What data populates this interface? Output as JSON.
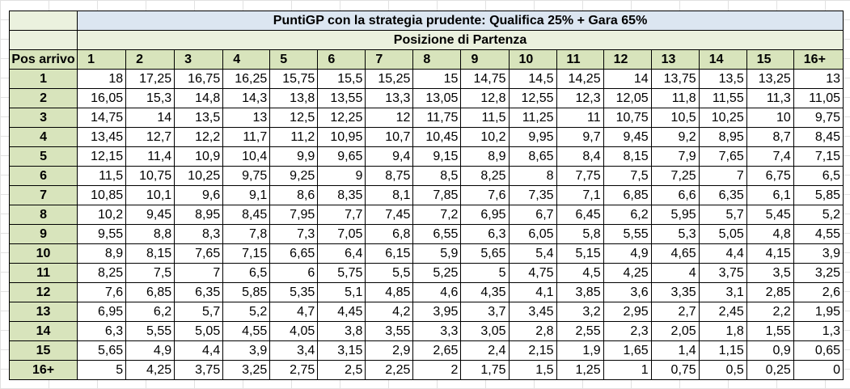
{
  "title": "PuntiGP con la strategia prudente: Qualifica 25% + Gara 65%",
  "subtitle": "Posizione di Partenza",
  "row_header_label": "Pos arrivo",
  "columns": [
    "1",
    "2",
    "3",
    "4",
    "5",
    "6",
    "7",
    "8",
    "9",
    "10",
    "11",
    "12",
    "13",
    "14",
    "15",
    "16+"
  ],
  "rows": [
    {
      "label": "1",
      "values": [
        "18",
        "17,25",
        "16,75",
        "16,25",
        "15,75",
        "15,5",
        "15,25",
        "15",
        "14,75",
        "14,5",
        "14,25",
        "14",
        "13,75",
        "13,5",
        "13,25",
        "13"
      ]
    },
    {
      "label": "2",
      "values": [
        "16,05",
        "15,3",
        "14,8",
        "14,3",
        "13,8",
        "13,55",
        "13,3",
        "13,05",
        "12,8",
        "12,55",
        "12,3",
        "12,05",
        "11,8",
        "11,55",
        "11,3",
        "11,05"
      ]
    },
    {
      "label": "3",
      "values": [
        "14,75",
        "14",
        "13,5",
        "13",
        "12,5",
        "12,25",
        "12",
        "11,75",
        "11,5",
        "11,25",
        "11",
        "10,75",
        "10,5",
        "10,25",
        "10",
        "9,75"
      ]
    },
    {
      "label": "4",
      "values": [
        "13,45",
        "12,7",
        "12,2",
        "11,7",
        "11,2",
        "10,95",
        "10,7",
        "10,45",
        "10,2",
        "9,95",
        "9,7",
        "9,45",
        "9,2",
        "8,95",
        "8,7",
        "8,45"
      ]
    },
    {
      "label": "5",
      "values": [
        "12,15",
        "11,4",
        "10,9",
        "10,4",
        "9,9",
        "9,65",
        "9,4",
        "9,15",
        "8,9",
        "8,65",
        "8,4",
        "8,15",
        "7,9",
        "7,65",
        "7,4",
        "7,15"
      ]
    },
    {
      "label": "6",
      "values": [
        "11,5",
        "10,75",
        "10,25",
        "9,75",
        "9,25",
        "9",
        "8,75",
        "8,5",
        "8,25",
        "8",
        "7,75",
        "7,5",
        "7,25",
        "7",
        "6,75",
        "6,5"
      ]
    },
    {
      "label": "7",
      "values": [
        "10,85",
        "10,1",
        "9,6",
        "9,1",
        "8,6",
        "8,35",
        "8,1",
        "7,85",
        "7,6",
        "7,35",
        "7,1",
        "6,85",
        "6,6",
        "6,35",
        "6,1",
        "5,85"
      ]
    },
    {
      "label": "8",
      "values": [
        "10,2",
        "9,45",
        "8,95",
        "8,45",
        "7,95",
        "7,7",
        "7,45",
        "7,2",
        "6,95",
        "6,7",
        "6,45",
        "6,2",
        "5,95",
        "5,7",
        "5,45",
        "5,2"
      ]
    },
    {
      "label": "9",
      "values": [
        "9,55",
        "8,8",
        "8,3",
        "7,8",
        "7,3",
        "7,05",
        "6,8",
        "6,55",
        "6,3",
        "6,05",
        "5,8",
        "5,55",
        "5,3",
        "5,05",
        "4,8",
        "4,55"
      ]
    },
    {
      "label": "10",
      "values": [
        "8,9",
        "8,15",
        "7,65",
        "7,15",
        "6,65",
        "6,4",
        "6,15",
        "5,9",
        "5,65",
        "5,4",
        "5,15",
        "4,9",
        "4,65",
        "4,4",
        "4,15",
        "3,9"
      ]
    },
    {
      "label": "11",
      "values": [
        "8,25",
        "7,5",
        "7",
        "6,5",
        "6",
        "5,75",
        "5,5",
        "5,25",
        "5",
        "4,75",
        "4,5",
        "4,25",
        "4",
        "3,75",
        "3,5",
        "3,25"
      ]
    },
    {
      "label": "12",
      "values": [
        "7,6",
        "6,85",
        "6,35",
        "5,85",
        "5,35",
        "5,1",
        "4,85",
        "4,6",
        "4,35",
        "4,1",
        "3,85",
        "3,6",
        "3,35",
        "3,1",
        "2,85",
        "2,6"
      ]
    },
    {
      "label": "13",
      "values": [
        "6,95",
        "6,2",
        "5,7",
        "5,2",
        "4,7",
        "4,45",
        "4,2",
        "3,95",
        "3,7",
        "3,45",
        "3,2",
        "2,95",
        "2,7",
        "2,45",
        "2,2",
        "1,95"
      ]
    },
    {
      "label": "14",
      "values": [
        "6,3",
        "5,55",
        "5,05",
        "4,55",
        "4,05",
        "3,8",
        "3,55",
        "3,3",
        "3,05",
        "2,8",
        "2,55",
        "2,3",
        "2,05",
        "1,8",
        "1,55",
        "1,3"
      ]
    },
    {
      "label": "15",
      "values": [
        "5,65",
        "4,9",
        "4,4",
        "3,9",
        "3,4",
        "3,15",
        "2,9",
        "2,65",
        "2,4",
        "2,15",
        "1,9",
        "1,65",
        "1,4",
        "1,15",
        "0,9",
        "0,65"
      ]
    },
    {
      "label": "16+",
      "values": [
        "5",
        "4,25",
        "3,75",
        "3,25",
        "2,75",
        "2,5",
        "2,25",
        "2",
        "1,75",
        "1,5",
        "1,25",
        "1",
        "0,75",
        "0,5",
        "0,25",
        "0"
      ]
    }
  ],
  "colors": {
    "title_fill": "#dce6f1",
    "subtitle_fill": "#ebf1de",
    "header_fill": "#d8e4bc",
    "gridline": "#e1e1e1",
    "border": "#000000"
  }
}
